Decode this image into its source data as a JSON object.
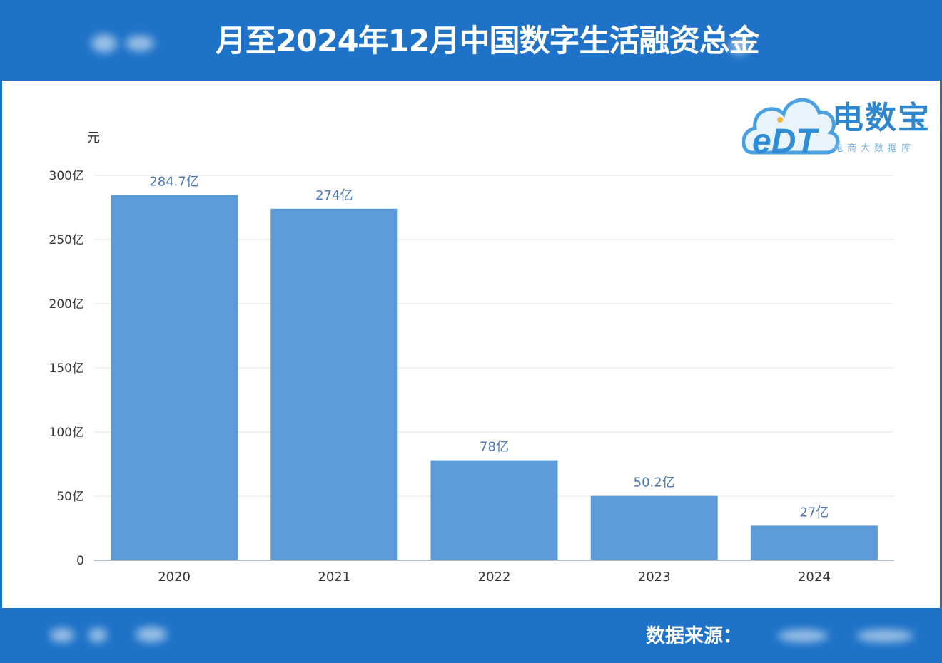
{
  "header": {
    "title": "月至2024年12月中国数字生活融资总金"
  },
  "logo": {
    "mark": "eDT",
    "name": "电数宝",
    "subtitle": "电商大数据库"
  },
  "footer": {
    "source_label": "数据来源："
  },
  "colors": {
    "band": "#1e72c8",
    "bar": "#5a9bd8",
    "grid": "#e6e6e6",
    "axis": "#9aa7b5"
  },
  "chart_data": {
    "type": "bar",
    "title": "月至2024年12月中国数字生活融资总金",
    "unit": "元",
    "categories": [
      "2020",
      "2021",
      "2022",
      "2023",
      "2024"
    ],
    "values": [
      284.7,
      274,
      78,
      50.2,
      27
    ],
    "data_labels": [
      "284.7亿",
      "274亿",
      "78亿",
      "50.2亿",
      "27亿"
    ],
    "yticks": [
      {
        "value": 0,
        "label": "0"
      },
      {
        "value": 50,
        "label": "50亿"
      },
      {
        "value": 100,
        "label": "100亿"
      },
      {
        "value": 150,
        "label": "150亿"
      },
      {
        "value": 200,
        "label": "200亿"
      },
      {
        "value": 250,
        "label": "250亿"
      },
      {
        "value": 300,
        "label": "300亿"
      }
    ],
    "ylim": [
      0,
      300
    ],
    "grid": true,
    "legend": "none"
  }
}
